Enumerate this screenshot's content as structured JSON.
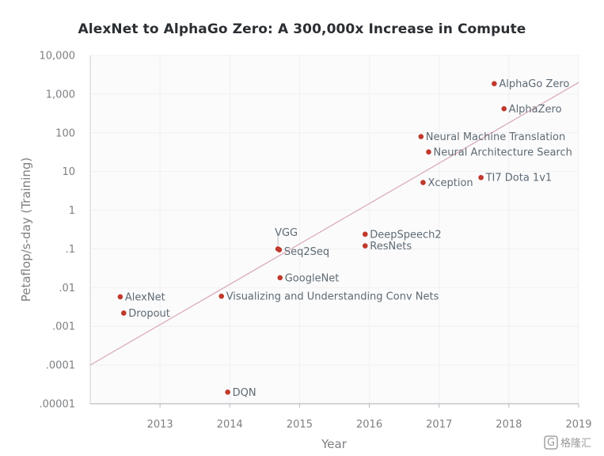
{
  "chart_data": {
    "type": "scatter",
    "title": "AlexNet to AlphaGo Zero: A 300,000x Increase in Compute",
    "xlabel": "Year",
    "ylabel": "Petaflop/s-day (Training)",
    "xlim": [
      2012,
      2019
    ],
    "ylim": [
      1e-05,
      10000
    ],
    "yscale": "log",
    "grid": true,
    "x_ticks": [
      2013,
      2014,
      2015,
      2016,
      2017,
      2018,
      2019
    ],
    "x_tick_labels": [
      "2013",
      "2014",
      "2015",
      "2016",
      "2017",
      "2018",
      "2019"
    ],
    "y_ticks": [
      1e-05,
      0.0001,
      0.001,
      0.01,
      0.1,
      1,
      10,
      100,
      1000,
      10000
    ],
    "y_tick_labels": [
      ".00001",
      ".0001",
      ".001",
      ".01",
      ".1",
      "1",
      "10",
      "100",
      "1,000",
      "10,000"
    ],
    "points": [
      {
        "label": "AlexNet",
        "x": 2012.43,
        "y": 0.0058
      },
      {
        "label": "Dropout",
        "x": 2012.48,
        "y": 0.0022
      },
      {
        "label": "Visualizing and Understanding Conv Nets",
        "x": 2013.88,
        "y": 0.006
      },
      {
        "label": "DQN",
        "x": 2013.97,
        "y": 2e-05
      },
      {
        "label": "GoogleNet",
        "x": 2014.72,
        "y": 0.018
      },
      {
        "label": "VGG",
        "x": 2014.69,
        "y": 0.1
      },
      {
        "label": "Seq2Seq",
        "x": 2014.71,
        "y": 0.095
      },
      {
        "label": "DeepSpeech2",
        "x": 2015.94,
        "y": 0.24
      },
      {
        "label": "ResNets",
        "x": 2015.94,
        "y": 0.12
      },
      {
        "label": "Neural Machine Translation",
        "x": 2016.74,
        "y": 80
      },
      {
        "label": "Neural Architecture Search",
        "x": 2016.85,
        "y": 32
      },
      {
        "label": "Xception",
        "x": 2016.77,
        "y": 5.2
      },
      {
        "label": "TI7 Dota 1v1",
        "x": 2017.6,
        "y": 7
      },
      {
        "label": "AlphaGo Zero",
        "x": 2017.79,
        "y": 1860
      },
      {
        "label": "AlphaZero",
        "x": 2017.93,
        "y": 420
      }
    ],
    "trend_line": {
      "x": [
        2012,
        2019
      ],
      "y": [
        0.0001,
        2000
      ]
    },
    "colors": {
      "point": "#c0392b",
      "trend": "#d9a7b7",
      "grid": "#f0f0f2",
      "plot_bg": "#fbfbfc"
    }
  },
  "watermark": {
    "icon": "g-logo-icon",
    "text": "格隆汇"
  }
}
